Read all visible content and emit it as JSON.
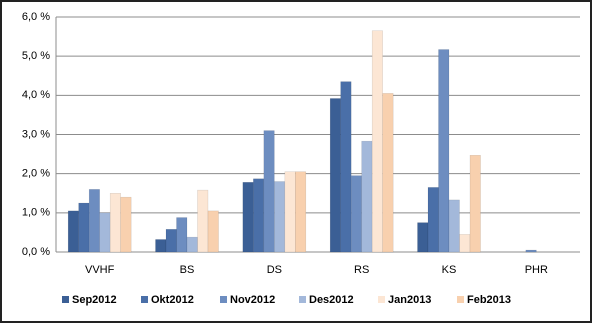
{
  "chart_data": {
    "type": "bar",
    "categories": [
      "VVHF",
      "BS",
      "DS",
      "RS",
      "KS",
      "PHR"
    ],
    "series": [
      {
        "name": "Sep2012",
        "color": "#3b5f95",
        "values": [
          1.05,
          0.32,
          1.78,
          3.92,
          0.75,
          0
        ]
      },
      {
        "name": "Okt2012",
        "color": "#4a6fa8",
        "values": [
          1.25,
          0.58,
          1.87,
          4.35,
          1.65,
          0
        ]
      },
      {
        "name": "Nov2012",
        "color": "#6d8dc0",
        "values": [
          1.6,
          0.88,
          3.1,
          1.95,
          5.17,
          0.05
        ]
      },
      {
        "name": "Des2012",
        "color": "#a3b8da",
        "values": [
          1.0,
          0.38,
          1.8,
          2.83,
          1.33,
          0
        ]
      },
      {
        "name": "Jan2013",
        "color": "#fce6d4",
        "values": [
          1.5,
          1.58,
          2.05,
          5.65,
          0.45,
          0
        ]
      },
      {
        "name": "Feb2013",
        "color": "#f8d0ae",
        "values": [
          1.4,
          1.05,
          2.05,
          4.05,
          2.47,
          0
        ]
      }
    ],
    "ylim": [
      0,
      6
    ],
    "yticks": [
      {
        "value": 0,
        "label": "0,0 %"
      },
      {
        "value": 1,
        "label": "1,0 %"
      },
      {
        "value": 2,
        "label": "2,0 %"
      },
      {
        "value": 3,
        "label": "3,0 %"
      },
      {
        "value": 4,
        "label": "4,0 %"
      },
      {
        "value": 5,
        "label": "5,0 %"
      },
      {
        "value": 6,
        "label": "6,0 %"
      }
    ],
    "grid": true
  }
}
